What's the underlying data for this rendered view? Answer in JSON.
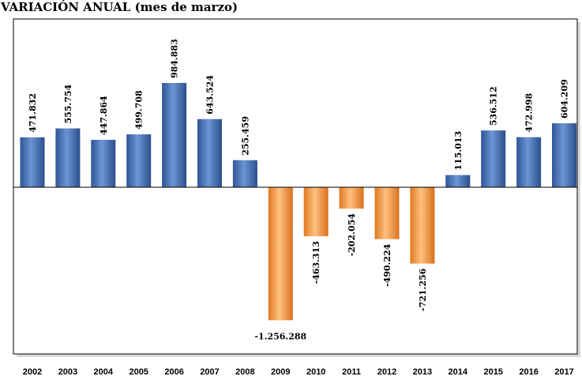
{
  "chart_data": {
    "type": "bar",
    "title": "VARIACIÓN ANUAL (mes de marzo)",
    "categories": [
      "2002",
      "2003",
      "2004",
      "2005",
      "2006",
      "2007",
      "2008",
      "2009",
      "2010",
      "2011",
      "2012",
      "2013",
      "2014",
      "2015",
      "2016",
      "2017"
    ],
    "values": [
      471832,
      555754,
      447864,
      499708,
      984883,
      643524,
      255459,
      -1256288,
      -463313,
      -202054,
      -490224,
      -721256,
      115013,
      536512,
      472998,
      604209
    ],
    "value_labels": [
      "471.832",
      "555.754",
      "447.864",
      "499.708",
      "984.883",
      "643.524",
      "255.459",
      "-1.256.288",
      "-463.313",
      "-202.054",
      "-490.224",
      "-721.256",
      "115.013",
      "536.512",
      "472.998",
      "604.209"
    ],
    "colors": {
      "positive": "#4a72b0",
      "negative": "#f59a44"
    },
    "legend": false,
    "grid": false
  }
}
